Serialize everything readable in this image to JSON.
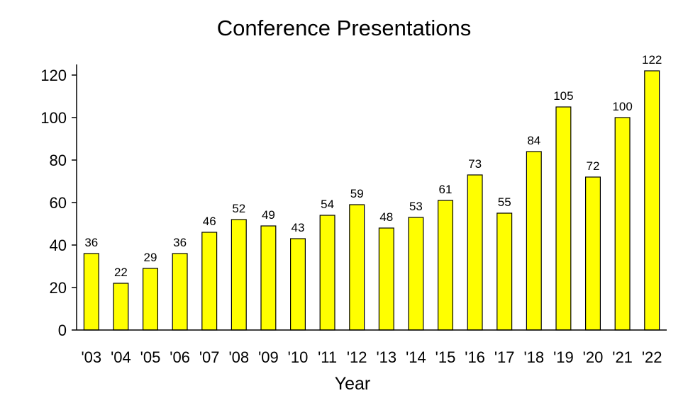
{
  "chart_data": {
    "type": "bar",
    "title": "Conference Presentations",
    "xlabel": "Year",
    "ylabel": "",
    "categories": [
      "'03",
      "'04",
      "'05",
      "'06",
      "'07",
      "'08",
      "'09",
      "'10",
      "'11",
      "'12",
      "'13",
      "'14",
      "'15",
      "'16",
      "'17",
      "'18",
      "'19",
      "'20",
      "'21",
      "'22"
    ],
    "values": [
      36,
      22,
      29,
      36,
      46,
      52,
      49,
      43,
      54,
      59,
      48,
      53,
      61,
      73,
      55,
      84,
      105,
      72,
      100,
      122
    ],
    "ylim": [
      0,
      125
    ],
    "yticks": [
      0,
      20,
      40,
      60,
      80,
      100,
      120
    ],
    "grid": false,
    "legend": "none",
    "colors": {
      "bar_fill": "#ffff00",
      "bar_stroke": "#000000"
    }
  }
}
